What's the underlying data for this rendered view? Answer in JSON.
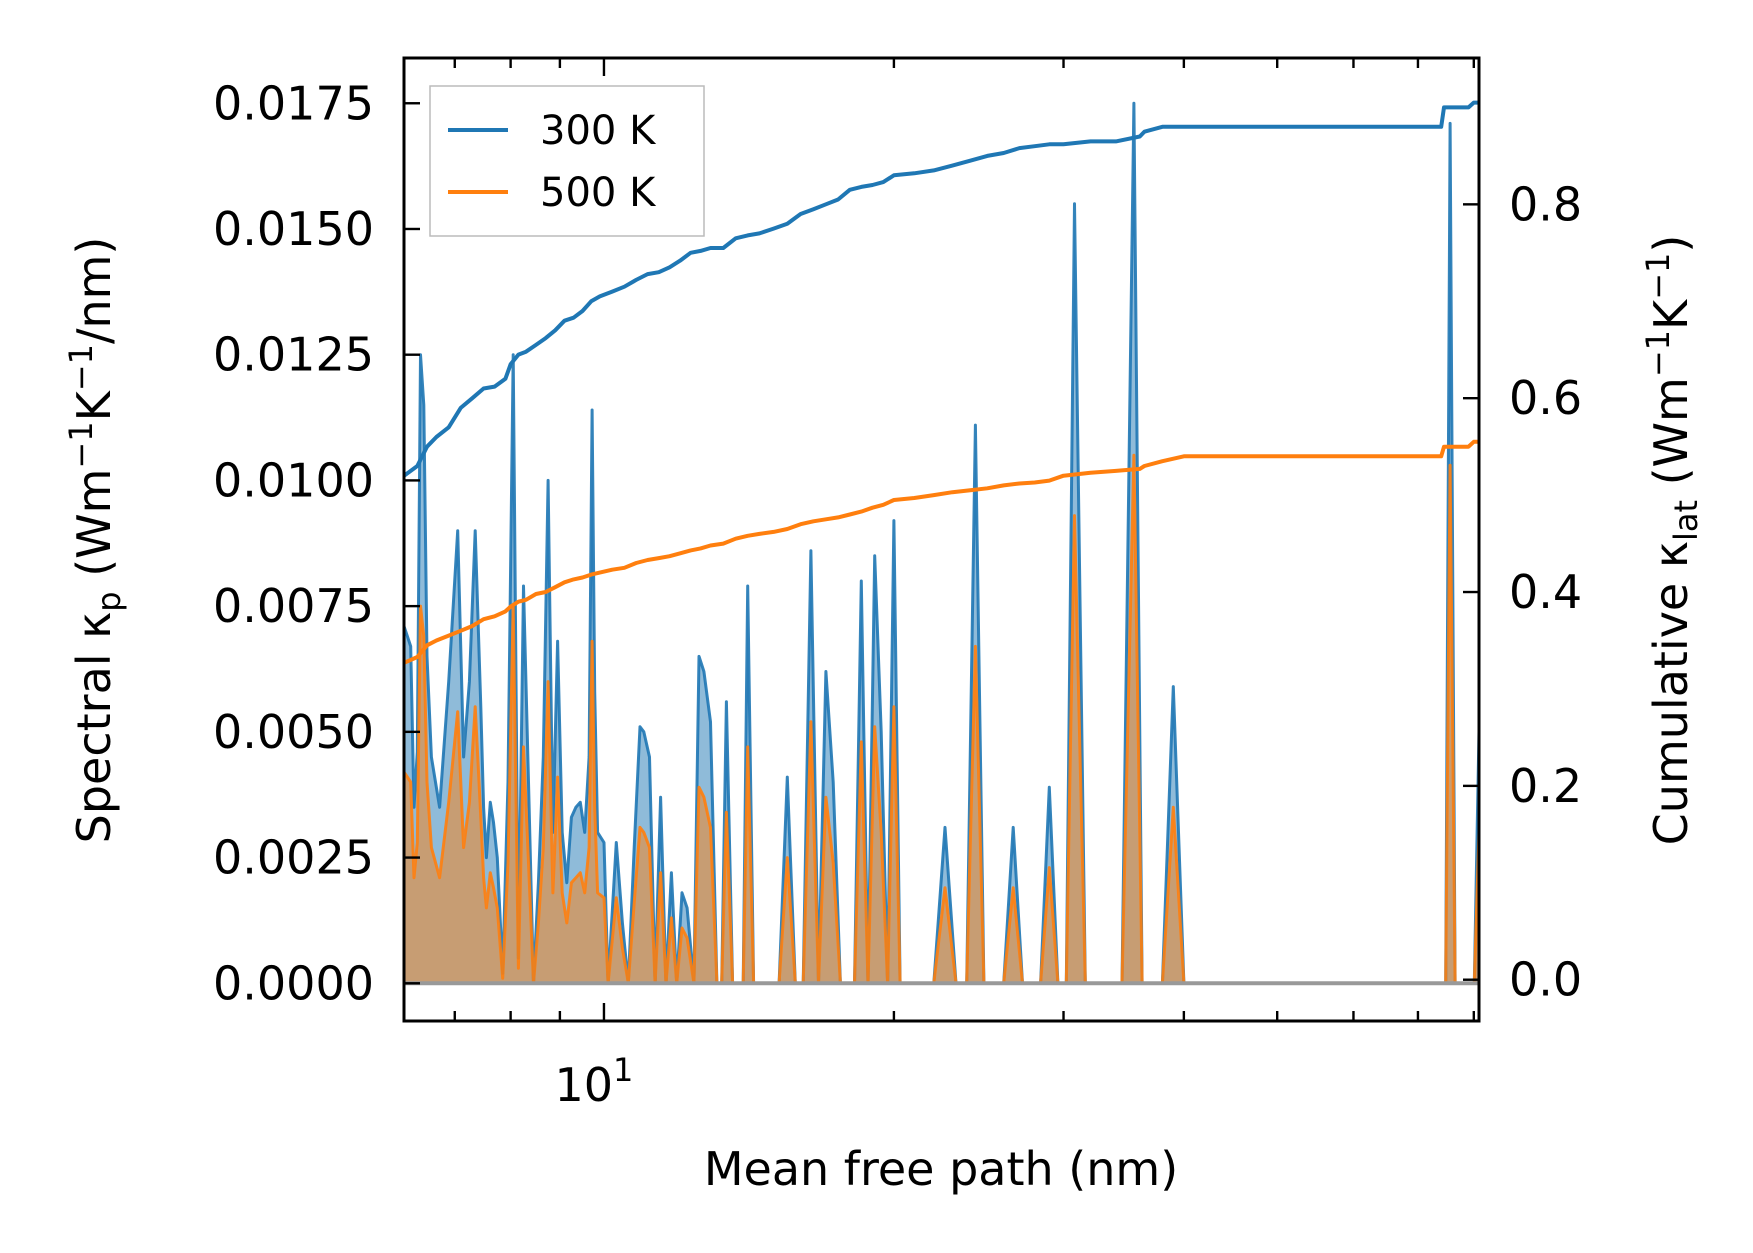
{
  "chart_data": {
    "type": "line",
    "title": "",
    "xlabel": "Mean free path (nm)",
    "xscale": "log",
    "xlim": [
      6.2,
      81
    ],
    "x_tick_label": {
      "base": "10",
      "exp": "1"
    },
    "y_left": {
      "label_parts": [
        "Spectral κ",
        "p",
        " (Wm",
        "−1",
        "K",
        "−1",
        "/nm)"
      ],
      "lim": [
        -0.00075,
        0.0184
      ],
      "ticks": [
        0.0,
        0.0025,
        0.005,
        0.0075,
        0.01,
        0.0125,
        0.015,
        0.0175
      ],
      "tick_labels": [
        "0.0000",
        "0.0025",
        "0.0050",
        "0.0075",
        "0.0100",
        "0.0125",
        "0.0150",
        "0.0175"
      ]
    },
    "y_right": {
      "label_parts": [
        "Cumulative κ",
        "lat",
        " (Wm",
        "−1",
        "K",
        "−1",
        ")"
      ],
      "lim": [
        -0.0426,
        0.951
      ],
      "ticks": [
        0.0,
        0.2,
        0.4,
        0.6,
        0.8
      ],
      "tick_labels": [
        "0.0",
        "0.2",
        "0.4",
        "0.6",
        "0.8"
      ]
    },
    "legend": {
      "position": "top-left",
      "entries": [
        {
          "label": "300 K",
          "color": "#1f77b4"
        },
        {
          "label": "500 K",
          "color": "#ff7f0e"
        }
      ]
    },
    "series": [
      {
        "name": "300 K",
        "color": "#1f77b4",
        "spectral_x": [
          6.2,
          6.25,
          6.3,
          6.35,
          6.4,
          6.45,
          6.5,
          6.55,
          6.62,
          6.75,
          6.9,
          7.05,
          7.15,
          7.25,
          7.35,
          7.45,
          7.5,
          7.55,
          7.62,
          7.68,
          7.75,
          7.85,
          7.95,
          8.05,
          8.15,
          8.25,
          8.35,
          8.45,
          8.55,
          8.65,
          8.75,
          8.85,
          8.95,
          9.05,
          9.15,
          9.25,
          9.35,
          9.45,
          9.55,
          9.65,
          9.72,
          9.78,
          9.85,
          10.0,
          10.1,
          10.3,
          10.45,
          10.6,
          10.75,
          10.9,
          11.0,
          11.15,
          11.3,
          11.45,
          11.6,
          11.75,
          11.9,
          12.05,
          12.2,
          12.4,
          12.55,
          12.7,
          12.9,
          13.1,
          13.25,
          13.4,
          13.6,
          13.8,
          13.95,
          14.1,
          14.3,
          14.5,
          14.7,
          14.9,
          15.2,
          15.5,
          15.8,
          16.1,
          16.4,
          16.7,
          17.0,
          17.3,
          17.6,
          17.9,
          18.2,
          18.5,
          18.8,
          19.1,
          19.4,
          19.7,
          20.0,
          20.3,
          20.6,
          20.9,
          21.2,
          21.5,
          22.0,
          22.6,
          23.2,
          23.8,
          24.3,
          24.8,
          25.4,
          26.0,
          26.6,
          27.2,
          27.8,
          28.4,
          29.0,
          29.6,
          30.2,
          30.8,
          31.6,
          32.5,
          33.5,
          34.5,
          35.5,
          36.2,
          37.0,
          38.0,
          39.0,
          40.0,
          41.0,
          42.0,
          43.5,
          46.0,
          50.0,
          55.0,
          60.0,
          65.0,
          70.0,
          73.0,
          74.0,
          74.8,
          75.6,
          76.5,
          77.4,
          78.3,
          79.2,
          80.1,
          81.0
        ],
        "spectral_y": [
          0.0071,
          0.0069,
          0.0067,
          0.0035,
          0.0046,
          0.0125,
          0.0115,
          0.0065,
          0.0045,
          0.0035,
          0.006,
          0.009,
          0.0045,
          0.006,
          0.009,
          0.0055,
          0.0035,
          0.0025,
          0.0036,
          0.0032,
          0.0025,
          0.0002,
          0.004,
          0.0125,
          0.0005,
          0.0079,
          0.004,
          0.0,
          0.002,
          0.0045,
          0.01,
          0.003,
          0.0068,
          0.003,
          0.002,
          0.0033,
          0.0035,
          0.0036,
          0.003,
          0.0045,
          0.0114,
          0.0058,
          0.003,
          0.0028,
          0.0,
          0.0028,
          0.0012,
          0.0,
          0.0027,
          0.0051,
          0.005,
          0.0045,
          0.0,
          0.0037,
          0.0,
          0.0022,
          0.0,
          0.0018,
          0.0015,
          0.0,
          0.0065,
          0.0062,
          0.0052,
          0.0,
          0.0,
          0.0056,
          0.0,
          0.0,
          0.0,
          0.0079,
          0.0,
          0.0,
          0.0,
          0.0,
          0.0,
          0.0041,
          0.0,
          0.0,
          0.0086,
          0.0,
          0.0062,
          0.004,
          0.0,
          0.0,
          0.0,
          0.008,
          0.0,
          0.0085,
          0.005,
          0.0,
          0.0092,
          0.0,
          0.0,
          0.0,
          0.0,
          0.0,
          0.0,
          0.0031,
          0.0,
          0.0,
          0.0111,
          0.0,
          0.0,
          0.0,
          0.0031,
          0.0,
          0.0,
          0.0,
          0.0039,
          0.0,
          0.0,
          0.0155,
          0.0,
          0.0,
          0.0,
          0.0,
          0.0175,
          0.0,
          0.0,
          0.0,
          0.0059,
          0.0,
          0.0,
          0.0,
          0.0,
          0.0,
          0.0,
          0.0,
          0.0,
          0.0,
          0.0,
          0.0,
          0.0,
          0.0,
          0.0171,
          0.0,
          0.0,
          0.0,
          0.0,
          0.0,
          0.005,
          0.0,
          0.0
        ],
        "cumulative_x": [
          6.2,
          6.3,
          6.4,
          6.55,
          6.7,
          6.9,
          7.1,
          7.3,
          7.5,
          7.7,
          7.9,
          8.0,
          8.15,
          8.3,
          8.5,
          8.7,
          8.9,
          9.1,
          9.3,
          9.5,
          9.7,
          9.9,
          10.2,
          10.5,
          10.8,
          11.1,
          11.4,
          11.7,
          12.0,
          12.3,
          12.6,
          12.9,
          13.3,
          13.7,
          14.1,
          14.5,
          15.0,
          15.5,
          16.0,
          16.5,
          17.0,
          17.5,
          18.0,
          18.5,
          19.0,
          19.5,
          20.0,
          21.0,
          22.0,
          23.0,
          24.0,
          25.0,
          26.0,
          27.0,
          28.0,
          29.0,
          30.0,
          32.0,
          34.0,
          36.0,
          36.4,
          38.0,
          40.0,
          44.0,
          50.0,
          58.0,
          66.0,
          72.0,
          74.0,
          74.5,
          76.0,
          78.0,
          79.0,
          80.0,
          81.0
        ],
        "cumulative_y": [
          0.52,
          0.525,
          0.53,
          0.55,
          0.56,
          0.57,
          0.59,
          0.6,
          0.61,
          0.612,
          0.62,
          0.635,
          0.645,
          0.648,
          0.655,
          0.662,
          0.67,
          0.68,
          0.683,
          0.69,
          0.7,
          0.705,
          0.71,
          0.715,
          0.722,
          0.728,
          0.73,
          0.735,
          0.742,
          0.75,
          0.752,
          0.755,
          0.755,
          0.765,
          0.768,
          0.77,
          0.775,
          0.78,
          0.79,
          0.795,
          0.8,
          0.805,
          0.815,
          0.818,
          0.82,
          0.823,
          0.83,
          0.832,
          0.835,
          0.84,
          0.845,
          0.85,
          0.853,
          0.858,
          0.86,
          0.862,
          0.862,
          0.865,
          0.865,
          0.87,
          0.875,
          0.88,
          0.88,
          0.88,
          0.88,
          0.88,
          0.88,
          0.88,
          0.88,
          0.9,
          0.9,
          0.9,
          0.9,
          0.905,
          0.905
        ]
      },
      {
        "name": "500 K",
        "color": "#ff7f0e",
        "spectral_x": [
          6.2,
          6.25,
          6.3,
          6.35,
          6.4,
          6.45,
          6.5,
          6.55,
          6.62,
          6.75,
          6.9,
          7.05,
          7.15,
          7.25,
          7.35,
          7.45,
          7.5,
          7.55,
          7.62,
          7.68,
          7.75,
          7.85,
          7.95,
          8.05,
          8.15,
          8.25,
          8.35,
          8.45,
          8.55,
          8.65,
          8.75,
          8.85,
          8.95,
          9.05,
          9.15,
          9.25,
          9.35,
          9.45,
          9.55,
          9.65,
          9.72,
          9.78,
          9.85,
          10.0,
          10.1,
          10.3,
          10.45,
          10.6,
          10.75,
          10.9,
          11.0,
          11.15,
          11.3,
          11.45,
          11.6,
          11.75,
          11.9,
          12.05,
          12.2,
          12.4,
          12.55,
          12.7,
          12.9,
          13.1,
          13.25,
          13.4,
          13.6,
          13.8,
          13.95,
          14.1,
          14.3,
          14.5,
          14.7,
          14.9,
          15.2,
          15.5,
          15.8,
          16.1,
          16.4,
          16.7,
          17.0,
          17.3,
          17.6,
          17.9,
          18.2,
          18.5,
          18.8,
          19.1,
          19.4,
          19.7,
          20.0,
          20.3,
          20.6,
          20.9,
          21.2,
          21.5,
          22.0,
          22.6,
          23.2,
          23.8,
          24.3,
          24.8,
          25.4,
          26.0,
          26.6,
          27.2,
          27.8,
          28.4,
          29.0,
          29.6,
          30.2,
          30.8,
          31.6,
          32.5,
          33.5,
          34.5,
          35.5,
          36.2,
          37.0,
          38.0,
          39.0,
          40.0,
          41.0,
          42.0,
          43.5,
          46.0,
          50.0,
          55.0,
          60.0,
          65.0,
          70.0,
          73.0,
          74.0,
          74.8,
          75.6,
          76.5,
          77.4,
          78.3,
          79.2,
          80.1,
          81.0
        ],
        "spectral_y": [
          0.0042,
          0.0041,
          0.004,
          0.0021,
          0.0028,
          0.0075,
          0.0069,
          0.004,
          0.0027,
          0.0021,
          0.0036,
          0.0054,
          0.0027,
          0.0036,
          0.0055,
          0.0033,
          0.0021,
          0.0015,
          0.0022,
          0.0019,
          0.0015,
          0.0001,
          0.0024,
          0.0075,
          0.0003,
          0.0047,
          0.0024,
          0.0,
          0.0012,
          0.0027,
          0.006,
          0.0018,
          0.0041,
          0.0018,
          0.0012,
          0.002,
          0.0021,
          0.0022,
          0.0018,
          0.0027,
          0.0068,
          0.0035,
          0.0018,
          0.0017,
          0.0,
          0.0017,
          0.0007,
          0.0,
          0.0016,
          0.0031,
          0.003,
          0.0027,
          0.0,
          0.0022,
          0.0,
          0.0013,
          0.0,
          0.0011,
          0.0009,
          0.0,
          0.0039,
          0.0037,
          0.0031,
          0.0,
          0.0,
          0.0034,
          0.0,
          0.0,
          0.0,
          0.0047,
          0.0,
          0.0,
          0.0,
          0.0,
          0.0,
          0.0025,
          0.0,
          0.0,
          0.0052,
          0.0,
          0.0037,
          0.0024,
          0.0,
          0.0,
          0.0,
          0.0048,
          0.0,
          0.0051,
          0.003,
          0.0,
          0.0055,
          0.0,
          0.0,
          0.0,
          0.0,
          0.0,
          0.0,
          0.0019,
          0.0,
          0.0,
          0.0067,
          0.0,
          0.0,
          0.0,
          0.0019,
          0.0,
          0.0,
          0.0,
          0.0023,
          0.0,
          0.0,
          0.0093,
          0.0,
          0.0,
          0.0,
          0.0,
          0.0105,
          0.0,
          0.0,
          0.0,
          0.0035,
          0.0,
          0.0,
          0.0,
          0.0,
          0.0,
          0.0,
          0.0,
          0.0,
          0.0,
          0.0,
          0.0,
          0.0,
          0.0,
          0.0103,
          0.0,
          0.0,
          0.0,
          0.0,
          0.0,
          0.003,
          0.0,
          0.0
        ],
        "cumulative_x": [
          6.2,
          6.3,
          6.4,
          6.55,
          6.7,
          6.9,
          7.1,
          7.3,
          7.5,
          7.7,
          7.9,
          8.0,
          8.15,
          8.3,
          8.5,
          8.7,
          8.9,
          9.1,
          9.3,
          9.5,
          9.7,
          9.9,
          10.2,
          10.5,
          10.8,
          11.1,
          11.4,
          11.7,
          12.0,
          12.3,
          12.6,
          12.9,
          13.3,
          13.7,
          14.1,
          14.5,
          15.0,
          15.5,
          16.0,
          16.5,
          17.0,
          17.5,
          18.0,
          18.5,
          19.0,
          19.5,
          20.0,
          21.0,
          22.0,
          23.0,
          24.0,
          25.0,
          26.0,
          27.0,
          28.0,
          29.0,
          30.0,
          32.0,
          34.0,
          36.0,
          36.4,
          38.0,
          40.0,
          44.0,
          50.0,
          58.0,
          66.0,
          72.0,
          74.0,
          74.5,
          76.0,
          78.0,
          79.0,
          80.0,
          81.0
        ],
        "cumulative_y": [
          0.327,
          0.33,
          0.333,
          0.345,
          0.35,
          0.355,
          0.36,
          0.365,
          0.372,
          0.375,
          0.38,
          0.385,
          0.39,
          0.392,
          0.398,
          0.4,
          0.405,
          0.41,
          0.413,
          0.415,
          0.418,
          0.42,
          0.423,
          0.425,
          0.43,
          0.433,
          0.435,
          0.437,
          0.44,
          0.443,
          0.445,
          0.448,
          0.45,
          0.455,
          0.458,
          0.46,
          0.462,
          0.465,
          0.47,
          0.473,
          0.475,
          0.477,
          0.48,
          0.483,
          0.487,
          0.49,
          0.495,
          0.497,
          0.5,
          0.503,
          0.505,
          0.507,
          0.51,
          0.512,
          0.513,
          0.515,
          0.52,
          0.523,
          0.525,
          0.527,
          0.53,
          0.535,
          0.54,
          0.54,
          0.54,
          0.54,
          0.54,
          0.54,
          0.54,
          0.55,
          0.55,
          0.55,
          0.55,
          0.555,
          0.555
        ]
      }
    ]
  }
}
